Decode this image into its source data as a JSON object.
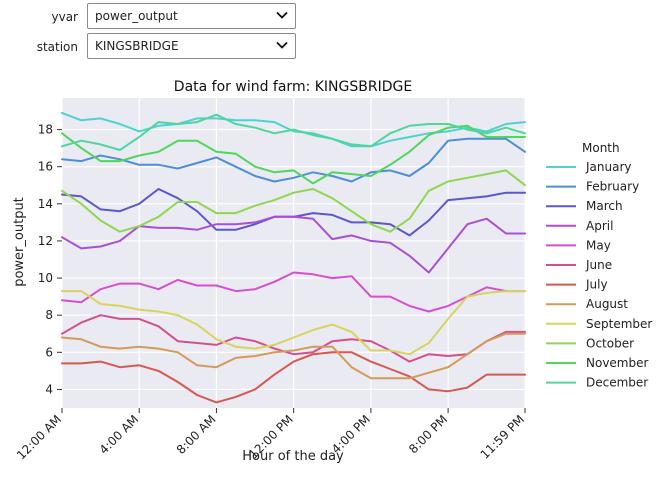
{
  "controls": {
    "yvar": {
      "label": "yvar",
      "value": "power_output"
    },
    "station": {
      "label": "station",
      "value": "KINGSBRIDGE"
    }
  },
  "chart_data": {
    "type": "line",
    "title": "Data for wind farm: KINGSBRIDGE",
    "xlabel": "Hour of the day",
    "ylabel": "power_output",
    "x_ticks": [
      {
        "h": 0,
        "label": "12:00 AM"
      },
      {
        "h": 4,
        "label": "4:00 AM"
      },
      {
        "h": 8,
        "label": "8:00 AM"
      },
      {
        "h": 12,
        "label": "12:00 PM"
      },
      {
        "h": 16,
        "label": "4:00 PM"
      },
      {
        "h": 20,
        "label": "8:00 PM"
      },
      {
        "h": 23.983,
        "label": "11:59 PM"
      }
    ],
    "y_ticks": [
      4,
      6,
      8,
      10,
      12,
      14,
      16,
      18
    ],
    "xlim": [
      0,
      23.983
    ],
    "ylim": [
      3.0,
      19.7
    ],
    "grid": true,
    "legend_title": "Month",
    "legend_position": "right",
    "x": [
      0,
      1,
      2,
      3,
      4,
      5,
      6,
      7,
      8,
      9,
      10,
      11,
      12,
      13,
      14,
      15,
      16,
      17,
      18,
      19,
      20,
      21,
      22,
      23,
      23.983
    ],
    "series": [
      {
        "name": "January",
        "color": "#4cd2d2",
        "values": [
          18.9,
          18.5,
          18.6,
          18.3,
          17.9,
          18.2,
          18.3,
          18.6,
          18.6,
          18.5,
          18.5,
          18.4,
          17.9,
          17.8,
          17.5,
          17.1,
          17.1,
          17.4,
          17.6,
          17.8,
          17.9,
          18.1,
          17.9,
          18.3,
          18.4
        ]
      },
      {
        "name": "February",
        "color": "#4c8ed8",
        "values": [
          16.4,
          16.3,
          16.6,
          16.4,
          16.1,
          16.1,
          15.9,
          16.2,
          16.5,
          16.0,
          15.5,
          15.2,
          15.4,
          15.7,
          15.5,
          15.2,
          15.7,
          15.8,
          15.5,
          16.2,
          17.4,
          17.5,
          17.5,
          17.5,
          16.8
        ]
      },
      {
        "name": "March",
        "color": "#5a57d0",
        "values": [
          14.5,
          14.4,
          13.7,
          13.6,
          14.0,
          14.8,
          14.3,
          13.6,
          12.6,
          12.6,
          12.9,
          13.3,
          13.3,
          13.5,
          13.4,
          13.0,
          13.0,
          12.9,
          12.3,
          13.1,
          14.2,
          14.3,
          14.4,
          14.6,
          14.6
        ]
      },
      {
        "name": "April",
        "color": "#a94fd7",
        "values": [
          12.2,
          11.6,
          11.7,
          12.0,
          12.8,
          12.7,
          12.7,
          12.6,
          12.9,
          12.9,
          13.0,
          13.3,
          13.3,
          13.2,
          12.1,
          12.3,
          12.0,
          11.9,
          11.2,
          10.3,
          11.6,
          12.9,
          13.2,
          12.4,
          12.4
        ]
      },
      {
        "name": "May",
        "color": "#d64fd0",
        "values": [
          8.8,
          8.7,
          9.4,
          9.7,
          9.7,
          9.4,
          9.9,
          9.6,
          9.6,
          9.3,
          9.4,
          9.8,
          10.3,
          10.2,
          10.0,
          10.1,
          9.0,
          9.0,
          8.5,
          8.2,
          8.5,
          9.0,
          9.5,
          9.3,
          9.3
        ]
      },
      {
        "name": "June",
        "color": "#d64f8d",
        "values": [
          7.0,
          7.6,
          8.0,
          7.8,
          7.8,
          7.4,
          6.6,
          6.5,
          6.4,
          6.8,
          6.6,
          6.2,
          5.9,
          6.0,
          6.6,
          6.7,
          6.6,
          6.1,
          5.5,
          5.9,
          5.8,
          5.9,
          6.6,
          7.1,
          7.1
        ]
      },
      {
        "name": "July",
        "color": "#d6584f",
        "values": [
          5.4,
          5.4,
          5.5,
          5.2,
          5.3,
          5.0,
          4.4,
          3.7,
          3.3,
          3.6,
          4.0,
          4.8,
          5.5,
          5.9,
          6.0,
          6.0,
          5.5,
          5.1,
          4.7,
          4.0,
          3.9,
          4.1,
          4.8,
          4.8,
          4.8
        ]
      },
      {
        "name": "August",
        "color": "#d69a57",
        "values": [
          6.8,
          6.7,
          6.3,
          6.2,
          6.3,
          6.2,
          6.0,
          5.3,
          5.2,
          5.7,
          5.8,
          6.0,
          6.1,
          6.3,
          6.3,
          5.2,
          4.6,
          4.6,
          4.6,
          4.9,
          5.2,
          5.9,
          6.6,
          7.0,
          7.0
        ]
      },
      {
        "name": "September",
        "color": "#d7d45c",
        "values": [
          9.3,
          9.3,
          8.6,
          8.5,
          8.3,
          8.2,
          8.0,
          7.5,
          6.7,
          6.3,
          6.2,
          6.4,
          6.8,
          7.2,
          7.5,
          7.1,
          6.1,
          6.1,
          5.9,
          6.5,
          7.8,
          9.0,
          9.2,
          9.3,
          9.3
        ]
      },
      {
        "name": "October",
        "color": "#90d64f",
        "values": [
          14.7,
          14.0,
          13.1,
          12.5,
          12.8,
          13.3,
          14.1,
          14.1,
          13.5,
          13.5,
          13.9,
          14.2,
          14.6,
          14.8,
          14.3,
          13.6,
          12.9,
          12.5,
          13.2,
          14.7,
          15.2,
          15.4,
          15.6,
          15.8,
          15.0
        ]
      },
      {
        "name": "November",
        "color": "#4fd65c",
        "values": [
          17.8,
          17.0,
          16.3,
          16.3,
          16.6,
          16.8,
          17.4,
          17.4,
          16.8,
          16.7,
          16.0,
          15.7,
          15.8,
          15.1,
          15.7,
          15.6,
          15.5,
          16.1,
          16.8,
          17.7,
          18.1,
          18.2,
          17.6,
          17.6,
          17.6
        ]
      },
      {
        "name": "December",
        "color": "#4fd69a",
        "values": [
          17.1,
          17.4,
          17.2,
          16.9,
          17.6,
          18.4,
          18.3,
          18.4,
          18.8,
          18.3,
          18.1,
          17.8,
          18.0,
          17.7,
          17.5,
          17.2,
          17.1,
          17.8,
          18.2,
          18.3,
          18.3,
          18.0,
          17.8,
          18.1,
          17.8
        ]
      }
    ]
  }
}
